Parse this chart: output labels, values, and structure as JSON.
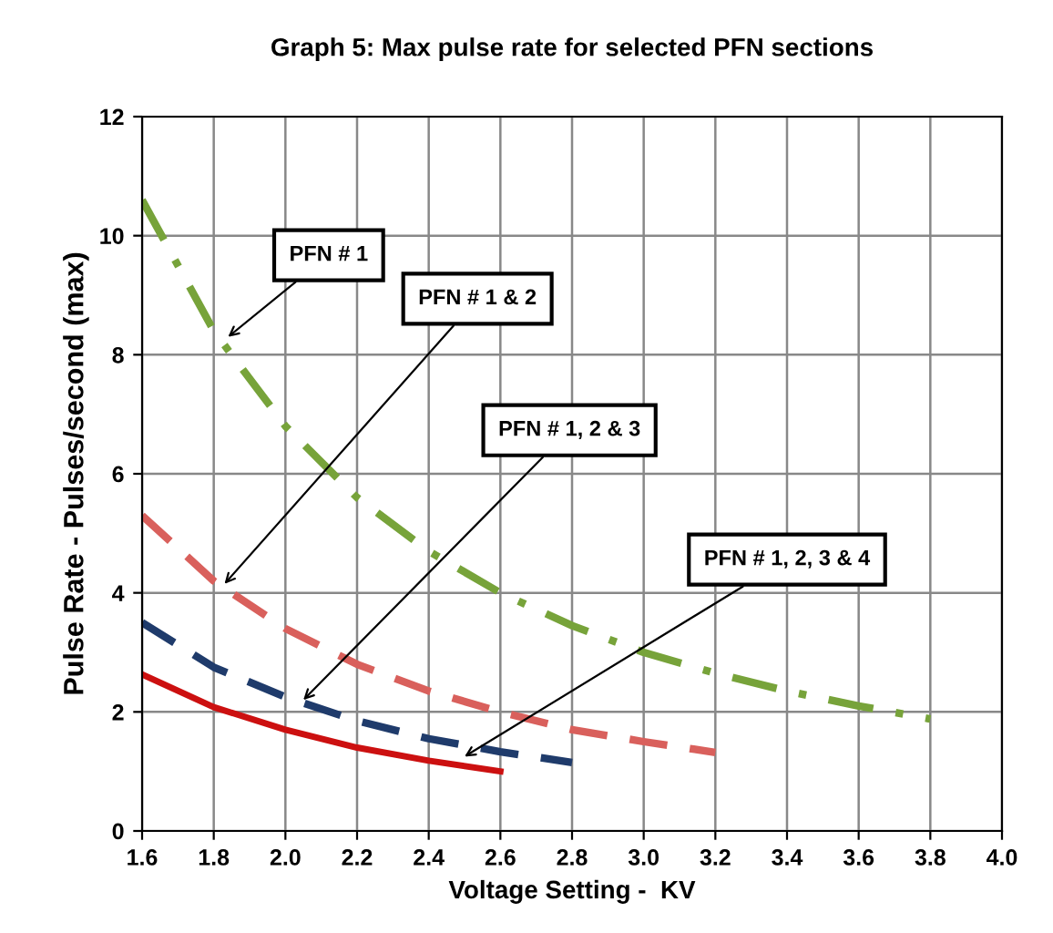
{
  "chart_data": {
    "type": "line",
    "title": "Graph 5: Max pulse rate for selected PFN sections",
    "xlabel": "Voltage Setting -  KV",
    "ylabel": "Pulse Rate - Pulses/second (max)",
    "series": [
      {
        "color": "#77a33a",
        "line_style": "dashdot",
        "x": [
          1.6,
          1.8,
          2.0,
          2.2,
          2.4,
          2.6,
          2.8,
          3.0,
          3.2,
          3.4,
          3.6,
          3.8
        ],
        "values": [
          10.6,
          8.4,
          6.8,
          5.6,
          4.7,
          4.0,
          3.45,
          3.0,
          2.65,
          2.35,
          2.1,
          1.88
        ]
      },
      {
        "color": "#d9605c",
        "line_style": "dashed",
        "x": [
          1.6,
          1.8,
          2.0,
          2.2,
          2.4,
          2.6,
          2.8,
          3.0,
          3.2
        ],
        "values": [
          5.3,
          4.2,
          3.4,
          2.8,
          2.35,
          2.0,
          1.7,
          1.5,
          1.32
        ]
      },
      {
        "color": "#1f3b6b",
        "line_style": "dashed",
        "x": [
          1.6,
          1.8,
          2.0,
          2.2,
          2.4,
          2.6,
          2.8
        ],
        "values": [
          3.5,
          2.75,
          2.25,
          1.85,
          1.55,
          1.33,
          1.15
        ]
      },
      {
        "color": "#cc1010",
        "line_style": "solid",
        "x": [
          1.6,
          1.8,
          2.0,
          2.2,
          2.4,
          2.6
        ],
        "values": [
          2.63,
          2.08,
          1.7,
          1.4,
          1.18,
          1.0
        ]
      }
    ],
    "annotations": [
      {
        "text": "PFN # 1",
        "x": 1.84,
        "y": 8.3
      },
      {
        "text": "PFN # 1 & 2",
        "x": 1.83,
        "y": 4.15
      },
      {
        "text": "PFN # 1, 2 & 3",
        "x": 2.05,
        "y": 2.2
      },
      {
        "text": "PFN # 1, 2, 3 & 4",
        "x": 2.5,
        "y": 1.25
      }
    ],
    "xlim": [
      1.6,
      4.0
    ],
    "xticks": [
      {
        "value": 1.6,
        "label": "1.6"
      },
      {
        "value": 1.8,
        "label": "1.8"
      },
      {
        "value": 2.0,
        "label": "2.0"
      },
      {
        "value": 2.2,
        "label": "2.2"
      },
      {
        "value": 2.4,
        "label": "2.4"
      },
      {
        "value": 2.6,
        "label": "2.6"
      },
      {
        "value": 2.8,
        "label": "2.8"
      },
      {
        "value": 3.0,
        "label": "3.0"
      },
      {
        "value": 3.2,
        "label": "3.2"
      },
      {
        "value": 3.4,
        "label": "3.4"
      },
      {
        "value": 3.6,
        "label": "3.6"
      },
      {
        "value": 3.8,
        "label": "3.8"
      },
      {
        "value": 4.0,
        "label": "4.0"
      }
    ],
    "ylim": [
      0,
      12
    ],
    "yticks": [
      0,
      2,
      4,
      6,
      8,
      10,
      12
    ],
    "grid": true,
    "marker": "none"
  }
}
